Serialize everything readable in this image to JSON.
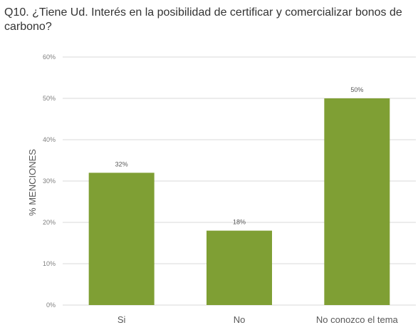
{
  "chart_data": {
    "type": "bar",
    "title": "Q10. ¿Tiene Ud. Interés en la posibilidad de certificar y comercializar bonos de carbono?",
    "xlabel": "",
    "ylabel": "% MENCIONES",
    "categories": [
      "Si",
      "No",
      "No conozco el tema"
    ],
    "values": [
      32,
      18,
      50
    ],
    "data_labels": [
      "32%",
      "18%",
      "50%"
    ],
    "ylim": [
      0,
      60
    ],
    "yticks": [
      0,
      10,
      20,
      30,
      40,
      50,
      60
    ],
    "ytick_labels": [
      "0%",
      "10%",
      "20%",
      "30%",
      "40%",
      "50%",
      "60%"
    ],
    "grid": true,
    "legend": "none",
    "bar_color": "#7f9f34",
    "grid_color": "#d9d9d9"
  }
}
